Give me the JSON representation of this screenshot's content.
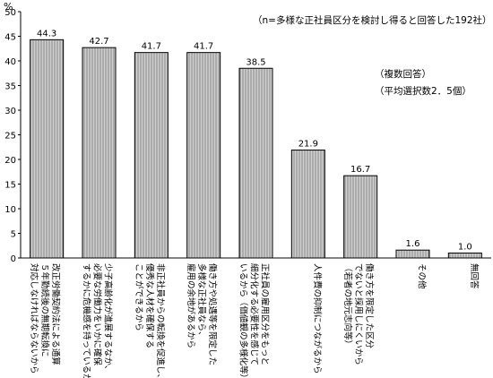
{
  "chart_data": {
    "type": "bar",
    "ylabel": "%",
    "ylim": [
      0,
      50
    ],
    "yticks": [
      0,
      5,
      10,
      15,
      20,
      25,
      30,
      35,
      40,
      45,
      50
    ],
    "grid": false,
    "annotations": [
      "（n=多様な正社員区分を検討し得ると回答した192社）",
      "（複数回答）",
      "（平均選択数2．5個）"
    ],
    "categories": [
      "改正労働契約法による通算5年勤続後の無期転換に対応しなければならないから",
      "少子高齢化が進展するなか、必要な労働力をいかに確保するかに危機感を持っているから",
      "非正社員からの転換を促進し、優秀な人材を確保することができるから",
      "働き方や処遇等を限定した多様な正社員なら、雇用の余地があるから",
      "正社員の雇用区分をもっと細分化する必要性を感じているから（価値観の多様化等）",
      "人件費の抑制につながるから",
      "働き方を限定した区分でないと採用しにくいから（若者の地元志向等）",
      "その他",
      "無回答"
    ],
    "category_lines": [
      [
        "改正労働契約法による通算",
        "５年勤続後の無期転換に",
        "対応しなければならないから"
      ],
      [
        "少子高齢化が進展するなか、",
        "必要な労働力をいかに確保",
        "するかに危機感を持っているから"
      ],
      [
        "非正社員からの転換を促進し、",
        "優秀な人材を確保する",
        "ことができるから"
      ],
      [
        "働き方や処遇等を限定した",
        "多様な正社員なら、",
        "雇用の余地があるから"
      ],
      [
        "正社員の雇用区分をもっと",
        "細分化する必要性を感じて",
        "いるから（価値観の多様化等）"
      ],
      [
        "人件費の抑制につながるから"
      ],
      [
        "働き方を限定した区分",
        "でないと採用しにくいから",
        "（若者の地元志向等）"
      ],
      [
        "その他"
      ],
      [
        "無回答"
      ]
    ],
    "values": [
      44.3,
      42.7,
      41.7,
      41.7,
      38.5,
      21.9,
      16.7,
      1.6,
      1.0
    ],
    "value_labels": [
      "44.3",
      "42.7",
      "41.7",
      "41.7",
      "38.5",
      "21.9",
      "16.7",
      "1.6",
      "1.0"
    ],
    "colors": {
      "bar_fill": "#cfcfcf",
      "bar_stroke": "#000000",
      "hatch": "#8a8a8a",
      "axis": "#000000"
    }
  }
}
